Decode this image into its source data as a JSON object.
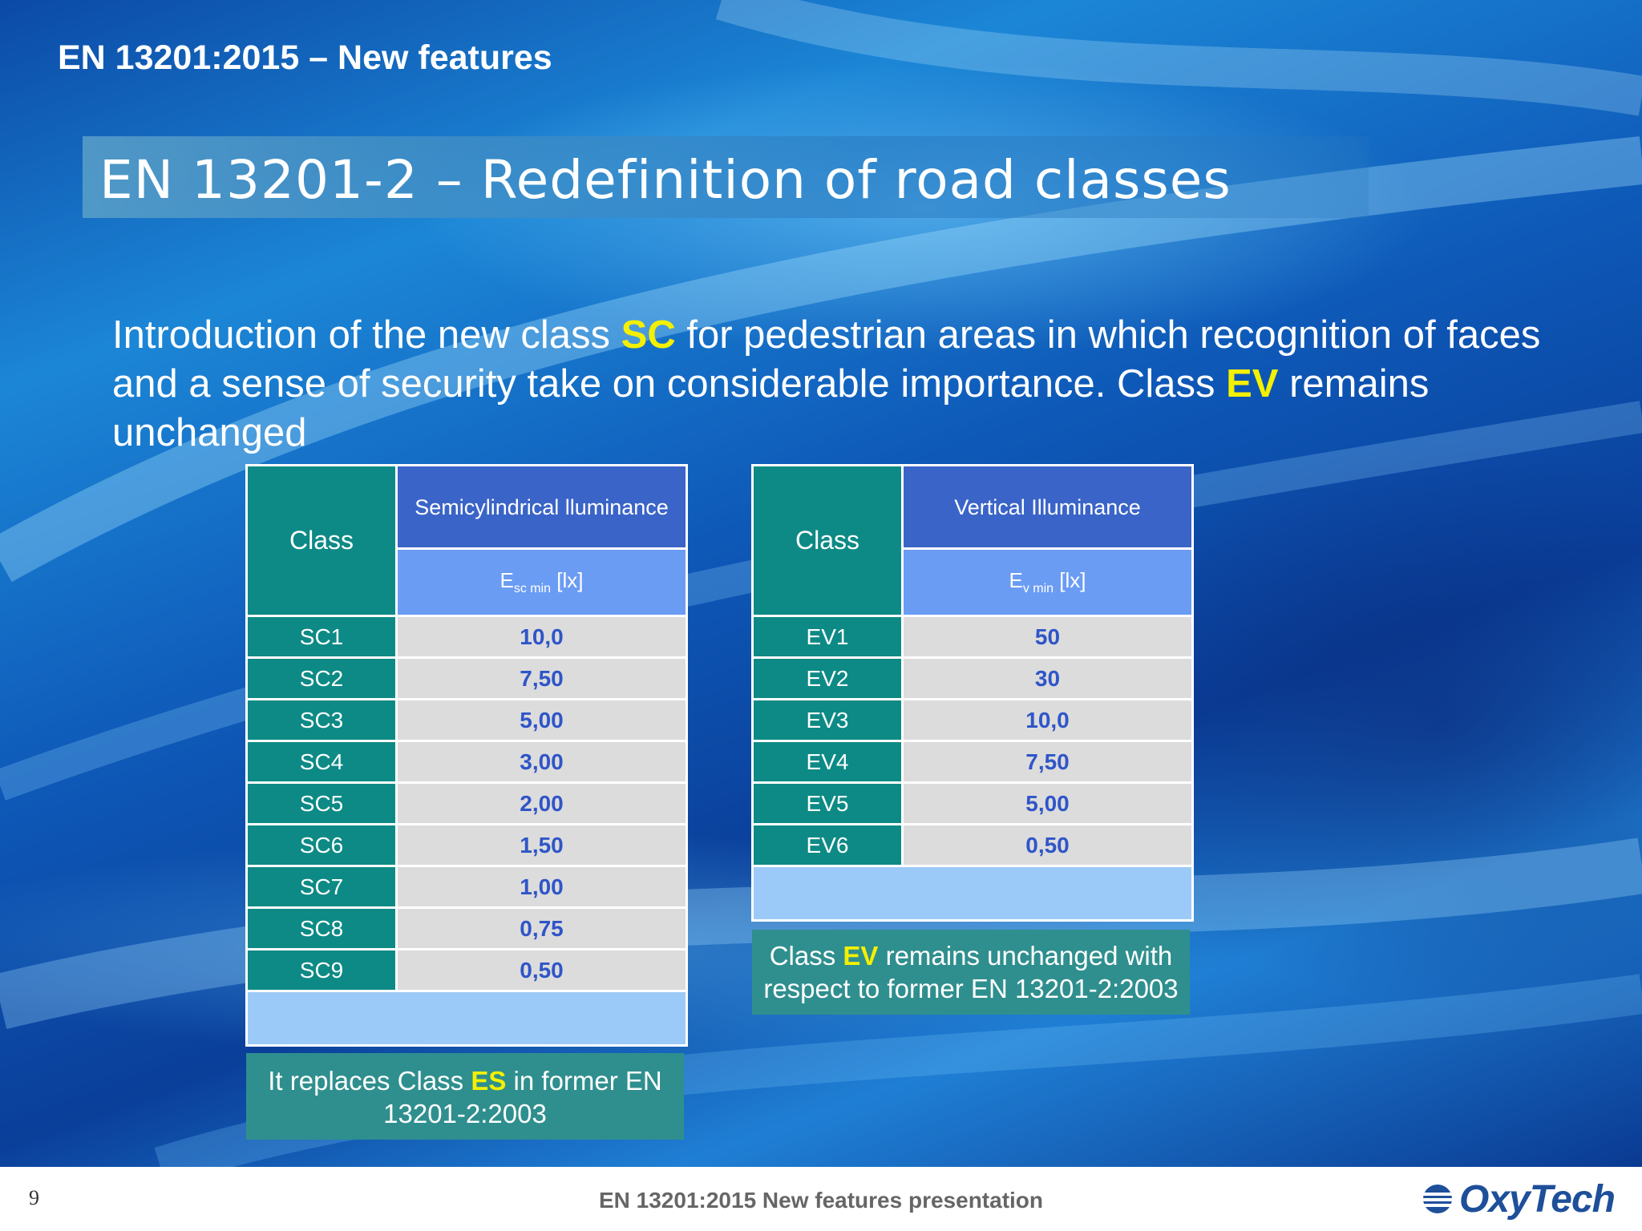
{
  "header": {
    "top_title": "EN 13201:2015 – New features"
  },
  "section": {
    "title": "EN 13201-2 – Redefinition of road classes"
  },
  "intro": {
    "part1": "Introduction of the new class ",
    "hl1": "SC",
    "part2": " for pedestrian areas in which recognition of faces and a sense of security take on considerable importance. Class ",
    "hl2": "EV",
    "part3": " remains unchanged"
  },
  "sc_table": {
    "class_header": "Class",
    "group_header": "Semicylindrical lluminance",
    "unit_symbol": "E",
    "unit_sub": "sc min",
    "unit_rest": " [lx]",
    "rows": [
      {
        "cls": "SC1",
        "val": "10,0"
      },
      {
        "cls": "SC2",
        "val": "7,50"
      },
      {
        "cls": "SC3",
        "val": "5,00"
      },
      {
        "cls": "SC4",
        "val": "3,00"
      },
      {
        "cls": "SC5",
        "val": "2,00"
      },
      {
        "cls": "SC6",
        "val": "1,50"
      },
      {
        "cls": "SC7",
        "val": "1,00"
      },
      {
        "cls": "SC8",
        "val": "0,75"
      },
      {
        "cls": "SC9",
        "val": "0,50"
      }
    ]
  },
  "ev_table": {
    "class_header": "Class",
    "group_header": "Vertical Illuminance",
    "unit_symbol": "E",
    "unit_sub": "v min",
    "unit_rest": " [lx]",
    "rows": [
      {
        "cls": "EV1",
        "val": "50"
      },
      {
        "cls": "EV2",
        "val": "30"
      },
      {
        "cls": "EV3",
        "val": "10,0"
      },
      {
        "cls": "EV4",
        "val": "7,50"
      },
      {
        "cls": "EV5",
        "val": "5,00"
      },
      {
        "cls": "EV6",
        "val": "0,50"
      }
    ]
  },
  "note_sc": {
    "part1": "It replaces Class ",
    "hl": "ES",
    "part2": " in former EN 13201-2:2003"
  },
  "note_ev": {
    "part1": "Class ",
    "hl": "EV",
    "part2": " remains unchanged with respect to former EN 13201-2:2003"
  },
  "footer": {
    "page_number": "9",
    "text": "EN 13201:2015 New features presentation",
    "logo_text": "OxyTech"
  },
  "colors": {
    "highlight": "#f4f000",
    "teal": "#0d8a85",
    "header_blue": "#3a64c8",
    "value_blue": "#2f55c8"
  }
}
